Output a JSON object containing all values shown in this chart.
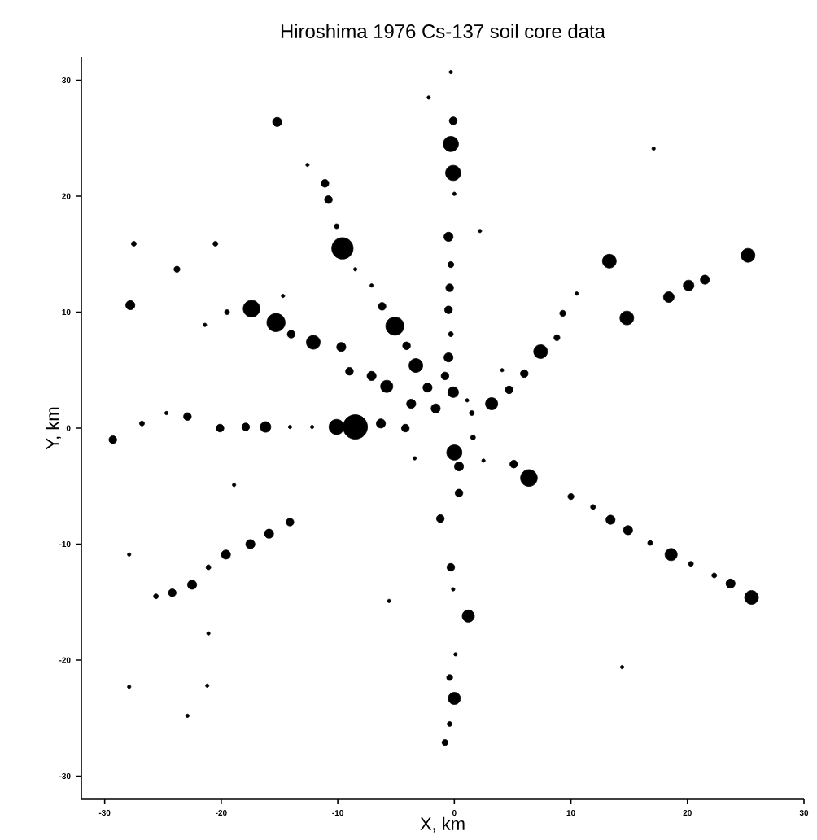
{
  "chart_data": {
    "type": "bubble",
    "title": "Hiroshima 1976 Cs-137 soil core data",
    "xlabel": "X, km",
    "ylabel": "Y, km",
    "xlim": [
      -32,
      30
    ],
    "ylim": [
      -32,
      32
    ],
    "xticks": [
      -30,
      -20,
      -10,
      0,
      10,
      20,
      30
    ],
    "yticks": [
      -30,
      -20,
      -10,
      0,
      10,
      20,
      30
    ],
    "marker": "circle",
    "grid": false,
    "series": [
      {
        "color": "#000000",
        "x": [
          -0.3,
          -2.2,
          -0.1,
          -0.3,
          -0.1,
          0,
          -0.5,
          2.2,
          -0.3,
          -0.4,
          -0.5,
          -0.3,
          -0.5,
          -0.8,
          -0.1,
          -1.6,
          0,
          0.4,
          0.4,
          -1.2,
          -0.3,
          -0.1,
          1.2,
          0.1,
          -0.4,
          0,
          -0.4,
          -0.8,
          -29.3,
          -26.8,
          -24.7,
          -22.9,
          -20.1,
          -17.9,
          -16.2,
          -14.1,
          -12.2,
          -10.1,
          -8.5,
          -6.3,
          -4.2,
          -15.2,
          -12.6,
          -11.1,
          -10.8,
          -10.1,
          -9.6,
          -8.5,
          -7.1,
          -6.2,
          -5.1,
          -4.1,
          -3.3,
          -2.3,
          -27.8,
          -27.5,
          -23.8,
          -20.5,
          -19.5,
          -21.4,
          -14.7,
          -17.4,
          -15.3,
          -14.0,
          -12.1,
          -9.7,
          -9.0,
          -7.1,
          -5.8,
          -3.7,
          1.1,
          1.5,
          1.6,
          3.2,
          4.7,
          6.0,
          4.1,
          7.4,
          8.8,
          9.3,
          10.5,
          13.3,
          14.8,
          18.4,
          20.1,
          21.5,
          25.2,
          17.1,
          -18.9,
          -14.1,
          -15.9,
          -17.5,
          -19.6,
          -21.1,
          -22.5,
          -24.2,
          -25.6,
          -27.9,
          -21.1,
          -27.9,
          -21.2,
          -22.9,
          -5.6,
          -3.4,
          2.5,
          5.1,
          6.4,
          10.0,
          11.9,
          13.4,
          14.9,
          16.8,
          18.6,
          20.3,
          22.3,
          23.7,
          25.5,
          14.4
        ],
        "values": [
          30.7,
          28.5,
          26.5,
          24.5,
          22.0,
          20.2,
          16.5,
          17.0,
          14.1,
          12.1,
          10.2,
          8.1,
          6.1,
          4.5,
          3.1,
          1.7,
          -2.1,
          -3.3,
          -5.6,
          -7.8,
          -12.0,
          -13.9,
          -16.2,
          -19.5,
          -21.5,
          -23.3,
          -25.5,
          -27.1,
          -1.0,
          0.4,
          1.3,
          1.0,
          0,
          0.1,
          0.1,
          0.1,
          0.1,
          0.1,
          0.1,
          0.4,
          0,
          26.4,
          22.7,
          21.1,
          19.7,
          17.4,
          15.5,
          13.7,
          12.3,
          10.5,
          8.8,
          7.1,
          5.4,
          3.5,
          10.6,
          15.9,
          13.7,
          15.9,
          10.0,
          8.9,
          11.4,
          10.3,
          9.1,
          8.1,
          7.4,
          7.0,
          4.9,
          4.5,
          3.6,
          2.1,
          2.4,
          1.3,
          -0.8,
          2.1,
          3.3,
          4.7,
          5.0,
          6.6,
          7.8,
          9.9,
          11.6,
          14.4,
          9.5,
          11.3,
          12.3,
          12.8,
          14.9,
          24.1,
          -4.9,
          -8.1,
          -9.1,
          -10.0,
          -10.9,
          -12.0,
          -13.5,
          -14.2,
          -14.5,
          -10.9,
          -17.7,
          -22.3,
          -22.2,
          -24.8,
          -14.9,
          -2.6,
          -2.8,
          -3.1,
          -4.3,
          -5.9,
          -6.8,
          -7.9,
          -8.8,
          -9.9,
          -10.9,
          -11.7,
          -12.7,
          -13.4,
          -14.6,
          -20.6
        ],
        "sizes": [
          0.02,
          0.02,
          0.1,
          0.39,
          0.39,
          0.02,
          0.14,
          0.02,
          0.06,
          0.1,
          0.1,
          0.04,
          0.14,
          0.1,
          0.19,
          0.14,
          0.39,
          0.14,
          0.1,
          0.1,
          0.1,
          0.02,
          0.25,
          0.02,
          0.06,
          0.25,
          0.04,
          0.06,
          0.1,
          0.04,
          0.02,
          0.1,
          0.1,
          0.1,
          0.19,
          0.02,
          0.02,
          0.39,
          1,
          0.14,
          0.1,
          0.14,
          0.02,
          0.1,
          0.1,
          0.04,
          0.77,
          0.02,
          0.02,
          0.1,
          0.56,
          0.1,
          0.32,
          0.14,
          0.14,
          0.04,
          0.06,
          0.04,
          0.04,
          0.02,
          0.02,
          0.47,
          0.56,
          0.1,
          0.32,
          0.14,
          0.1,
          0.14,
          0.25,
          0.14,
          0.02,
          0.04,
          0.04,
          0.25,
          0.1,
          0.1,
          0.02,
          0.32,
          0.06,
          0.06,
          0.02,
          0.32,
          0.32,
          0.19,
          0.19,
          0.14,
          0.32,
          0.02,
          0.02,
          0.1,
          0.14,
          0.14,
          0.14,
          0.04,
          0.14,
          0.1,
          0.04,
          0.02,
          0.02,
          0.02,
          0.02,
          0.02,
          0.02,
          0.02,
          0.02,
          0.1,
          0.47,
          0.06,
          0.04,
          0.14,
          0.14,
          0.04,
          0.25,
          0.04,
          0.04,
          0.14,
          0.32,
          0.02
        ]
      }
    ]
  }
}
